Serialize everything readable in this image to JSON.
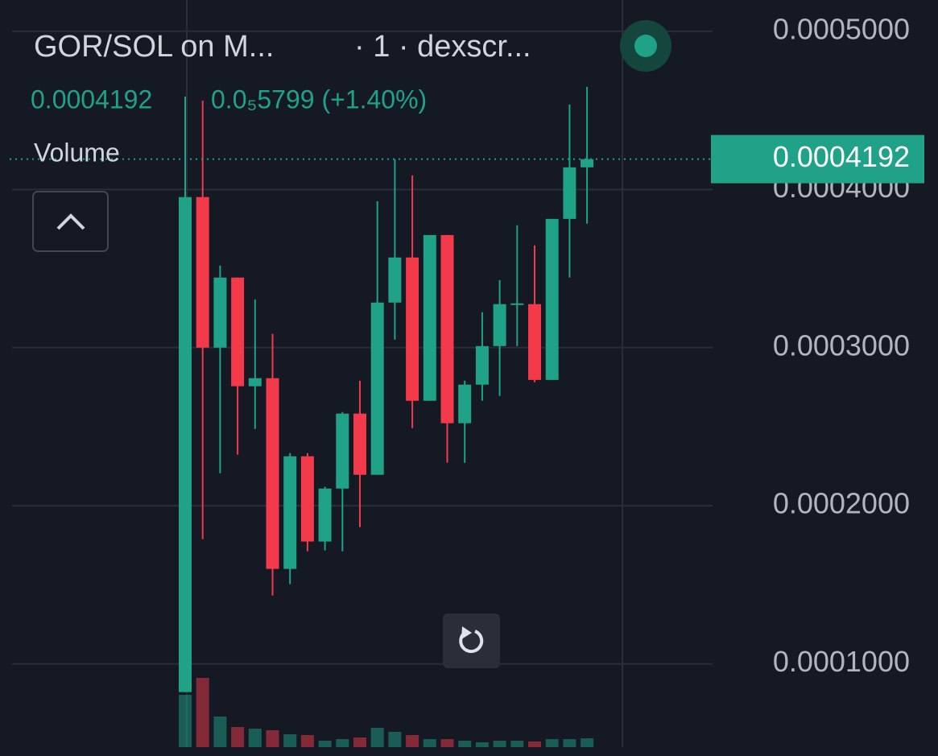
{
  "chart_data": {
    "type": "candlestick",
    "title": "GOR/SOL on M...",
    "interval": "· 1 · dexscr...",
    "change": "0.0₅5799 (+1.40%)",
    "volume_label": "Volume",
    "last_price": 0.0004192,
    "up_color": "#1fa287",
    "down_color": "#f23a4a",
    "categories": [
      null,
      null,
      null,
      null,
      null,
      null,
      null,
      null,
      null,
      null,
      null,
      null,
      null,
      null,
      null,
      null,
      null,
      null,
      null,
      null,
      null,
      null,
      null,
      null
    ],
    "open": [
      8.22e-05,
      0.0003952,
      0.0003,
      0.0003443,
      0.0002756,
      0.0002807,
      0.0001601,
      0.0002313,
      0.0001774,
      0.0002109,
      0.0002583,
      0.0002196,
      0.0003285,
      0.000357,
      0.0002664,
      0.0003712,
      0.0002522,
      0.0002766,
      0.000301,
      0.0003275,
      0.0003275,
      0.0002796,
      0.0003814,
      0.000414
    ],
    "high": [
      0.0004588,
      0.0004562,
      0.0003519,
      0.0003443,
      0.0003305,
      0.0003087,
      0.0002333,
      0.0002333,
      0.000212,
      0.0002593,
      0.0002791,
      0.0003926,
      0.0004191,
      0.0004089,
      0.0003712,
      0.0003712,
      0.0002791,
      0.0003224,
      0.0003427,
      0.0003774,
      0.0003646,
      0.0003814,
      0.0004537,
      0.0004649
    ],
    "low": [
      8.22e-05,
      0.0001789,
      0.0002206,
      0.0002323,
      0.0002486,
      0.0001433,
      0.0001504,
      0.0001712,
      0.0001718,
      0.0001712,
      0.0001865,
      0.0002196,
      0.0003051,
      0.0002491,
      0.0002664,
      0.0002272,
      0.0002272,
      0.0002664,
      0.0002695,
      0.000301,
      0.0002781,
      0.0002796,
      0.0003443,
      0.0003784
    ],
    "close": [
      0.0003952,
      0.0003,
      0.0003443,
      0.0002756,
      0.0002807,
      0.0001601,
      0.0002313,
      0.0001774,
      0.0002109,
      0.0002583,
      0.0002196,
      0.0003285,
      0.000357,
      0.0002664,
      0.0003712,
      0.0002522,
      0.0002766,
      0.000301,
      0.0003275,
      0.000328,
      0.0002796,
      0.0003814,
      0.000414,
      0.0004192
    ],
    "volume": [
      65,
      86,
      38,
      25,
      23,
      21,
      16,
      15,
      8,
      10,
      12,
      24,
      19,
      15,
      10,
      10,
      8,
      6,
      8,
      8,
      7,
      10,
      10,
      11
    ],
    "ylim": [
      4.74e-05,
      0.0005198
    ],
    "yticks": [
      {
        "value": 0.0001,
        "label": "0.0001000"
      },
      {
        "value": 0.0002,
        "label": "0.0002000"
      },
      {
        "value": 0.0003,
        "label": "0.0003000"
      },
      {
        "value": 0.0004,
        "label": "0.0004000"
      },
      {
        "value": 0.0005,
        "label": "0.0005000"
      }
    ],
    "grid": true
  }
}
